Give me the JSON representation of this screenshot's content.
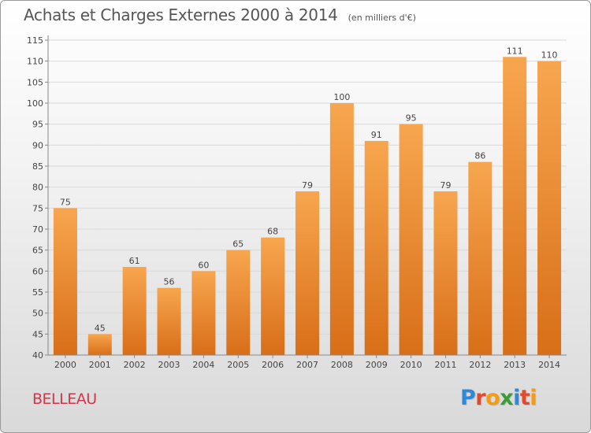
{
  "header": {
    "title": "Achats et Charges Externes 2000 à 2014",
    "subtitle": "(en milliers d'€)"
  },
  "place_name": "BELLEAU",
  "logo": {
    "text": "Proxiti",
    "letter_colors": [
      "#2e8ad8",
      "#e4492b",
      "#f39c12",
      "#3a9d3a",
      "#2e8ad8",
      "#e4492b",
      "#f39c12"
    ]
  },
  "colors": {
    "bar_light": "#f7a64f",
    "bar_dark": "#d86e18",
    "grid": "#d9d9d9",
    "axis_text": "#444444"
  },
  "chart_data": {
    "type": "bar",
    "title": "Achats et Charges Externes 2000 à 2014",
    "categories": [
      "2000",
      "2001",
      "2002",
      "2003",
      "2004",
      "2005",
      "2006",
      "2007",
      "2008",
      "2009",
      "2010",
      "2011",
      "2012",
      "2013",
      "2014"
    ],
    "values": [
      75,
      45,
      61,
      56,
      60,
      65,
      68,
      79,
      100,
      91,
      95,
      79,
      86,
      111,
      110
    ],
    "ylim": [
      40,
      115
    ],
    "yticks": [
      40,
      45,
      50,
      55,
      60,
      65,
      70,
      75,
      80,
      85,
      90,
      95,
      100,
      105,
      110,
      115
    ],
    "grid": true,
    "data_labels": true
  }
}
